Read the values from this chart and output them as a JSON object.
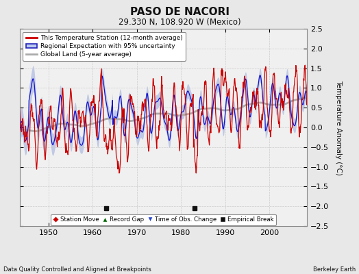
{
  "title": "PASO DE NACORI",
  "subtitle": "29.330 N, 108.920 W (Mexico)",
  "ylabel": "Temperature Anomaly (°C)",
  "footer_left": "Data Quality Controlled and Aligned at Breakpoints",
  "footer_right": "Berkeley Earth",
  "ylim": [
    -2.5,
    2.5
  ],
  "xlim": [
    1943.5,
    2008.5
  ],
  "xticks": [
    1950,
    1960,
    1970,
    1980,
    1990,
    2000
  ],
  "yticks": [
    -2.5,
    -2,
    -1.5,
    -1,
    -0.5,
    0,
    0.5,
    1,
    1.5,
    2,
    2.5
  ],
  "fig_bg": "#e8e8e8",
  "plot_bg": "#f0f0f0",
  "grid_color": "#cccccc",
  "empirical_breaks": [
    1963.0,
    1983.0
  ],
  "legend_line_color": "#cc0000",
  "legend_band_face": "#bbccee",
  "legend_band_edge": "#2222bb",
  "legend_gray_color": "#aaaaaa",
  "station_color": "#cc0000",
  "regional_color": "#1111cc",
  "regional_band_color": "#99aadd",
  "global_color": "#aaaaaa",
  "marker_station_move_color": "#cc0000",
  "marker_record_gap_color": "#006600",
  "marker_obs_change_color": "#2244cc",
  "marker_empirical_break_color": "#111111",
  "legend_items": [
    "This Temperature Station (12-month average)",
    "Regional Expectation with 95% uncertainty",
    "Global Land (5-year average)"
  ],
  "marker_legend": [
    "Station Move",
    "Record Gap",
    "Time of Obs. Change",
    "Empirical Break"
  ]
}
